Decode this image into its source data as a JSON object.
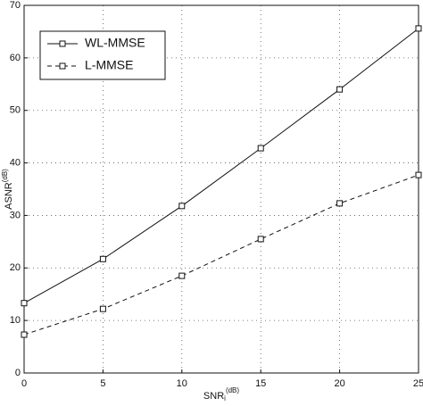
{
  "chart_data": {
    "type": "line",
    "x_label": {
      "main": "SNR",
      "sub": "i",
      "sup": "(dB)"
    },
    "y_label": {
      "main": "ASNR",
      "sup": "(dB)"
    },
    "x": [
      0,
      5,
      10,
      15,
      20,
      25
    ],
    "series": [
      {
        "name": "WL-MMSE",
        "color": "#111111",
        "dash": "solid",
        "marker": "square",
        "values": [
          13.3,
          21.7,
          31.8,
          42.8,
          54,
          65.6
        ]
      },
      {
        "name": "L-MMSE",
        "color": "#111111",
        "dash": "dashed",
        "marker": "square",
        "values": [
          7.3,
          12.2,
          18.5,
          25.5,
          32.3,
          37.7
        ]
      }
    ],
    "xlim": [
      0,
      25
    ],
    "xticks": [
      0,
      5,
      10,
      15,
      20,
      25
    ],
    "ylim": [
      0,
      70
    ],
    "yticks": [
      0,
      10,
      20,
      30,
      40,
      50,
      60,
      70
    ],
    "grid": true,
    "legend": "upper-left"
  }
}
